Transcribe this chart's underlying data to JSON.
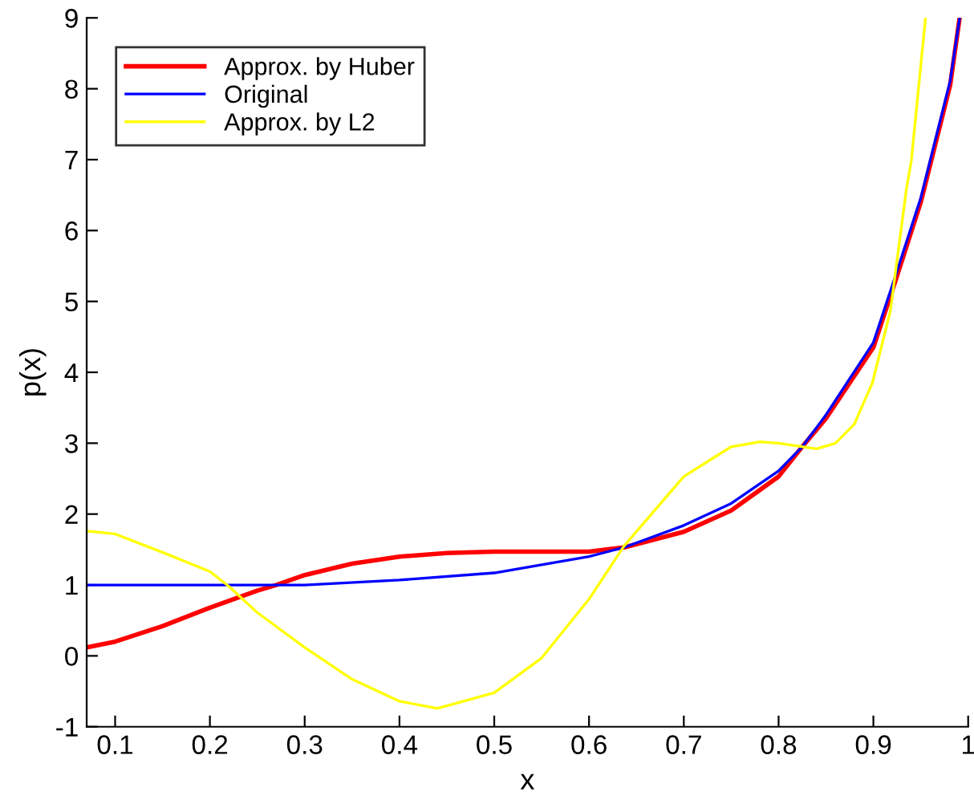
{
  "chart_data": {
    "type": "line",
    "xlabel": "x",
    "ylabel": "p(x)",
    "xlim": [
      0.07,
      1.0
    ],
    "ylim": [
      -1,
      9
    ],
    "xticks": [
      0.1,
      0.2,
      0.3,
      0.4,
      0.5,
      0.6,
      0.7,
      0.8,
      0.9,
      1
    ],
    "yticks": [
      -1,
      0,
      1,
      2,
      3,
      4,
      5,
      6,
      7,
      8,
      9
    ],
    "grid": false,
    "legend": "top left",
    "marker": "none",
    "line_style": "solid",
    "series": [
      {
        "name": "Approx. by Huber",
        "color": "#ff0000",
        "x": [
          0.07,
          0.1,
          0.15,
          0.2,
          0.25,
          0.27,
          0.3,
          0.35,
          0.4,
          0.45,
          0.5,
          0.55,
          0.6,
          0.637,
          0.7,
          0.75,
          0.8,
          0.825,
          0.85,
          0.9,
          0.924,
          0.95,
          0.981,
          0.991
        ],
        "values": [
          0.12,
          0.2,
          0.42,
          0.68,
          0.92,
          1.0,
          1.14,
          1.3,
          1.4,
          1.45,
          1.47,
          1.47,
          1.47,
          1.53,
          1.75,
          2.05,
          2.53,
          2.95,
          3.35,
          4.35,
          5.32,
          6.4,
          8.05,
          9.0
        ]
      },
      {
        "name": "Original",
        "color": "#0000ff",
        "x": [
          0.07,
          0.2,
          0.3,
          0.4,
          0.5,
          0.6,
          0.637,
          0.7,
          0.75,
          0.8,
          0.825,
          0.85,
          0.9,
          0.924,
          0.95,
          0.981,
          0.991
        ],
        "values": [
          1.0,
          1.0,
          1.0,
          1.07,
          1.17,
          1.4,
          1.53,
          1.84,
          2.15,
          2.61,
          2.95,
          3.4,
          4.42,
          5.39,
          6.46,
          8.11,
          9.0
        ]
      },
      {
        "name": "Approx. by L2",
        "color": "#ffff00",
        "x": [
          0.07,
          0.1,
          0.15,
          0.2,
          0.22,
          0.25,
          0.3,
          0.35,
          0.4,
          0.44,
          0.5,
          0.55,
          0.6,
          0.637,
          0.7,
          0.75,
          0.78,
          0.8,
          0.84,
          0.86,
          0.88,
          0.89,
          0.899,
          0.918,
          0.935,
          0.94,
          0.955
        ],
        "values": [
          1.76,
          1.72,
          1.46,
          1.19,
          0.98,
          0.61,
          0.12,
          -0.33,
          -0.64,
          -0.74,
          -0.52,
          -0.03,
          0.8,
          1.55,
          2.53,
          2.95,
          3.02,
          3.0,
          2.92,
          3.0,
          3.27,
          3.58,
          3.85,
          4.87,
          6.6,
          6.98,
          9.0
        ]
      }
    ]
  }
}
